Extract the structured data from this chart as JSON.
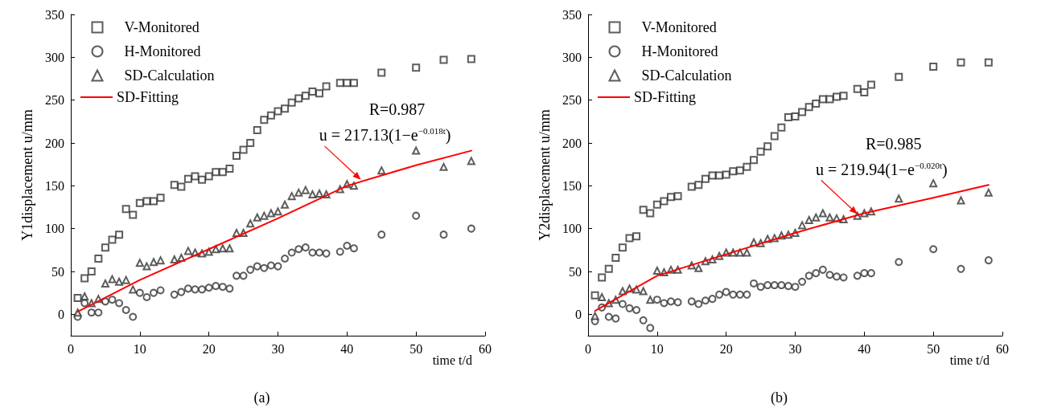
{
  "chart_data": [
    {
      "type": "scatter",
      "xlabel": "time t/d",
      "ylabel": "Y1displacement u/mm",
      "xlim": [
        0,
        60
      ],
      "xticks": [
        0,
        10,
        20,
        30,
        40,
        50,
        60
      ],
      "ylim": [
        -25,
        350
      ],
      "yticks": [
        0,
        50,
        100,
        150,
        200,
        250,
        300,
        350
      ],
      "grid": false,
      "legend": "top left",
      "x": [
        1,
        2,
        3,
        4,
        5,
        6,
        7,
        8,
        9,
        10,
        11,
        12,
        13,
        15,
        16,
        17,
        18,
        19,
        20,
        21,
        22,
        23,
        24,
        25,
        26,
        27,
        28,
        29,
        30,
        31,
        32,
        33,
        34,
        35,
        36,
        37,
        39,
        40,
        41,
        45,
        50,
        54,
        58
      ],
      "series": [
        {
          "name": "V-Monitored",
          "color": "#333333",
          "marker": "square",
          "values": [
            19,
            42,
            50,
            65,
            78,
            87,
            93,
            123,
            116,
            130,
            132,
            132,
            136,
            151,
            149,
            158,
            161,
            157,
            161,
            166,
            166,
            170,
            185,
            192,
            200,
            215,
            227,
            232,
            237,
            240,
            247,
            252,
            255,
            260,
            258,
            266,
            270,
            270,
            270,
            282,
            288,
            297,
            298
          ]
        },
        {
          "name": "H-Monitored",
          "color": "#333333",
          "marker": "circle",
          "values": [
            -3,
            13,
            2,
            2,
            15,
            17,
            13,
            5,
            -3,
            25,
            20,
            25,
            28,
            23,
            26,
            30,
            29,
            29,
            31,
            33,
            32,
            30,
            45,
            45,
            52,
            56,
            54,
            57,
            56,
            65,
            72,
            76,
            78,
            72,
            72,
            71,
            73,
            80,
            77,
            93,
            115,
            93,
            100
          ]
        },
        {
          "name": "SD-Calculation",
          "color": "#333333",
          "marker": "triangle",
          "values": [
            2,
            21,
            13,
            18,
            36,
            41,
            38,
            40,
            29,
            60,
            56,
            61,
            63,
            64,
            66,
            74,
            72,
            71,
            73,
            76,
            77,
            77,
            95,
            95,
            106,
            113,
            115,
            118,
            120,
            128,
            138,
            142,
            145,
            140,
            141,
            140,
            146,
            152,
            150,
            168,
            191,
            172,
            179
          ]
        },
        {
          "name": "SD-Fitting",
          "type": "line",
          "color": "#ff0000",
          "marker": "none",
          "line_style": "solid",
          "x": [
            1,
            10,
            20,
            30,
            40,
            45,
            50,
            58
          ],
          "values": [
            3,
            40,
            76,
            112,
            150,
            162,
            174,
            191
          ]
        }
      ],
      "annotations": [
        "R=0.987",
        {
          "text": "u = 217.13(1−e$^{−0.018t}$)",
          "x": 42,
          "y": 157
        },
        "(a)"
      ]
    },
    {
      "type": "scatter",
      "xlabel": "time t/d",
      "ylabel": "Y2displacement u/mm",
      "xlim": [
        0,
        60
      ],
      "xticks": [
        0,
        10,
        20,
        30,
        40,
        50,
        60
      ],
      "ylim": [
        -25,
        350
      ],
      "yticks": [
        0,
        50,
        100,
        150,
        200,
        250,
        300,
        350
      ],
      "grid": false,
      "legend": "top left",
      "x": [
        1,
        2,
        3,
        4,
        5,
        6,
        7,
        8,
        9,
        10,
        11,
        12,
        13,
        15,
        16,
        17,
        18,
        19,
        20,
        21,
        22,
        23,
        24,
        25,
        26,
        27,
        28,
        29,
        30,
        31,
        32,
        33,
        34,
        35,
        36,
        37,
        39,
        40,
        41,
        45,
        50,
        54,
        58
      ],
      "series": [
        {
          "name": "V-Monitored",
          "color": "#333333",
          "marker": "square",
          "values": [
            22,
            43,
            53,
            66,
            78,
            89,
            91,
            122,
            118,
            128,
            132,
            137,
            138,
            149,
            151,
            158,
            162,
            162,
            163,
            167,
            168,
            172,
            180,
            190,
            196,
            208,
            218,
            230,
            231,
            236,
            242,
            246,
            251,
            251,
            254,
            255,
            263,
            259,
            268,
            277,
            289,
            294,
            294
          ]
        },
        {
          "name": "H-Monitored",
          "color": "#333333",
          "marker": "circle",
          "values": [
            -8,
            8,
            -3,
            -5,
            12,
            7,
            5,
            -7,
            -16,
            17,
            13,
            15,
            14,
            15,
            12,
            16,
            18,
            23,
            26,
            23,
            23,
            23,
            36,
            32,
            34,
            34,
            34,
            33,
            32,
            38,
            45,
            48,
            52,
            46,
            44,
            43,
            45,
            48,
            48,
            61,
            76,
            53,
            63
          ]
        },
        {
          "name": "SD-Calculation",
          "color": "#333333",
          "marker": "triangle",
          "values": [
            -2,
            20,
            13,
            17,
            27,
            30,
            29,
            27,
            17,
            51,
            49,
            52,
            52,
            57,
            54,
            62,
            64,
            68,
            72,
            72,
            72,
            72,
            84,
            83,
            88,
            89,
            92,
            93,
            95,
            104,
            110,
            113,
            118,
            113,
            112,
            111,
            115,
            118,
            120,
            135,
            153,
            133,
            142
          ]
        },
        {
          "name": "SD-Fitting",
          "type": "line",
          "color": "#ff0000",
          "marker": "none",
          "line_style": "solid",
          "x": [
            1,
            10,
            20,
            30,
            40,
            50,
            58
          ],
          "values": [
            4,
            45,
            70,
            95,
            118,
            136,
            151
          ]
        }
      ],
      "annotations": [
        "R=0.985",
        {
          "text": "u = 219.94(1−e$^{−0.020t}$)",
          "x": 39,
          "y": 117
        },
        "(b)"
      ]
    }
  ]
}
